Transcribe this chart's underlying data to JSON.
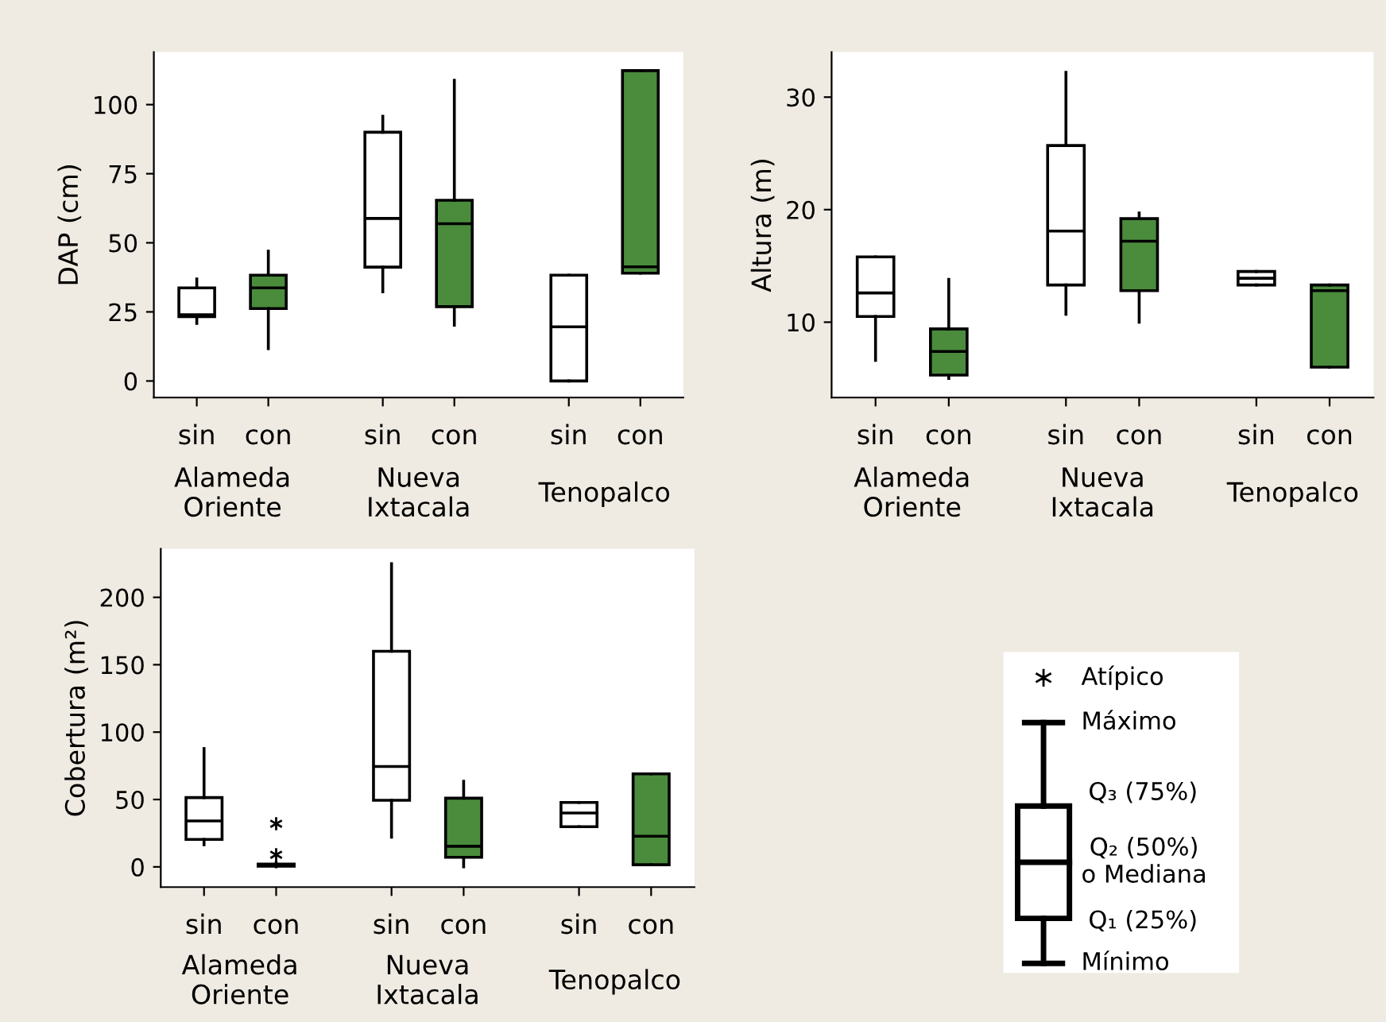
{
  "chart_data": [
    {
      "type": "box",
      "ylabel": "DAP (cm)",
      "categories": [
        "sin",
        "con",
        "sin",
        "con",
        "sin",
        "con"
      ],
      "annotations": [
        "Alameda\nOriente",
        "Nueva\nIxtacala",
        "Tenopalco"
      ],
      "colors": [
        "#ffffff",
        "#4a8c3c",
        "#ffffff",
        "#4a8c3c",
        "#ffffff",
        "#4a8c3c"
      ],
      "boxes": [
        {
          "low": 20.8,
          "q1": 23.3,
          "median": 24,
          "q3": 33.7,
          "high": 36.9
        },
        {
          "low": 11.7,
          "q1": 26.2,
          "median": 33.7,
          "q3": 38.3,
          "high": 47
        },
        {
          "low": 32.3,
          "q1": 41.2,
          "median": 58.8,
          "q3": 90,
          "high": 95.8
        },
        {
          "low": 20.2,
          "q1": 26.9,
          "median": 56.9,
          "q3": 65.4,
          "high": 108.8
        },
        {
          "low": 0,
          "q1": 0,
          "median": 19.6,
          "q3": 38.3,
          "high": 38.3
        },
        {
          "low": 39,
          "q1": 39,
          "median": 41.3,
          "q3": 112.3,
          "high": 112.3
        }
      ],
      "ylim": [
        -6,
        119
      ],
      "yticks": [
        0,
        25,
        50,
        75,
        100
      ]
    },
    {
      "type": "box",
      "ylabel": "Altura (m)",
      "categories": [
        "sin",
        "con",
        "sin",
        "con",
        "sin",
        "con"
      ],
      "annotations": [
        "Alameda\nOriente",
        "Nueva\nIxtacala",
        "Tenopalco"
      ],
      "colors": [
        "#ffffff",
        "#4a8c3c",
        "#ffffff",
        "#4a8c3c",
        "#ffffff",
        "#4a8c3c"
      ],
      "boxes": [
        {
          "low": 6.6,
          "q1": 10.5,
          "median": 12.6,
          "q3": 15.8,
          "high": 15.8
        },
        {
          "low": 5.0,
          "q1": 5.3,
          "median": 7.4,
          "q3": 9.4,
          "high": 13.8
        },
        {
          "low": 10.7,
          "q1": 13.3,
          "median": 18.1,
          "q3": 25.7,
          "high": 32.2
        },
        {
          "low": 10.0,
          "q1": 12.8,
          "median": 17.2,
          "q3": 19.2,
          "high": 19.7
        },
        {
          "low": 13.3,
          "q1": 13.3,
          "median": 13.9,
          "q3": 14.5,
          "high": 14.5
        },
        {
          "low": 6.0,
          "q1": 6.0,
          "median": 12.8,
          "q3": 13.3,
          "high": 13.3
        }
      ],
      "ylim": [
        3.3,
        34
      ],
      "yticks": [
        10,
        20,
        30
      ]
    },
    {
      "type": "box",
      "ylabel": "Cobertura (m²)",
      "categories": [
        "sin",
        "con",
        "sin",
        "con",
        "sin",
        "con"
      ],
      "annotations": [
        "Alameda\nOriente",
        "Nueva\nIxtacala",
        "Tenopalco"
      ],
      "colors": [
        "#ffffff",
        "#4a8c3c",
        "#ffffff",
        "#4a8c3c",
        "#ffffff",
        "#4a8c3c"
      ],
      "boxes": [
        {
          "low": 16.5,
          "q1": 20.4,
          "median": 34.1,
          "q3": 51.4,
          "high": 87.8
        },
        {
          "low": 0,
          "q1": 0.5,
          "median": 1,
          "q3": 2,
          "high": 3,
          "outliers": [
            9,
            32
          ]
        },
        {
          "low": 22,
          "q1": 49.4,
          "median": 74.5,
          "q3": 160,
          "high": 225
        },
        {
          "low": 0,
          "q1": 7.1,
          "median": 15.3,
          "q3": 51,
          "high": 63.5
        },
        {
          "low": 29.8,
          "q1": 29.8,
          "median": 40,
          "q3": 47.8,
          "high": 47.8
        },
        {
          "low": 1.6,
          "q1": 1.6,
          "median": 22.7,
          "q3": 69,
          "high": 69
        }
      ],
      "ylim": [
        -15,
        236
      ],
      "yticks": [
        0,
        50,
        100,
        150,
        200
      ]
    },
    {
      "type": "other",
      "annotations": [
        "Atípico",
        "Máximo",
        "Q₃ (75%)",
        "Q₂ (50%)\no Mediana",
        "Q₁ (25%)",
        "Mínimo"
      ]
    }
  ]
}
